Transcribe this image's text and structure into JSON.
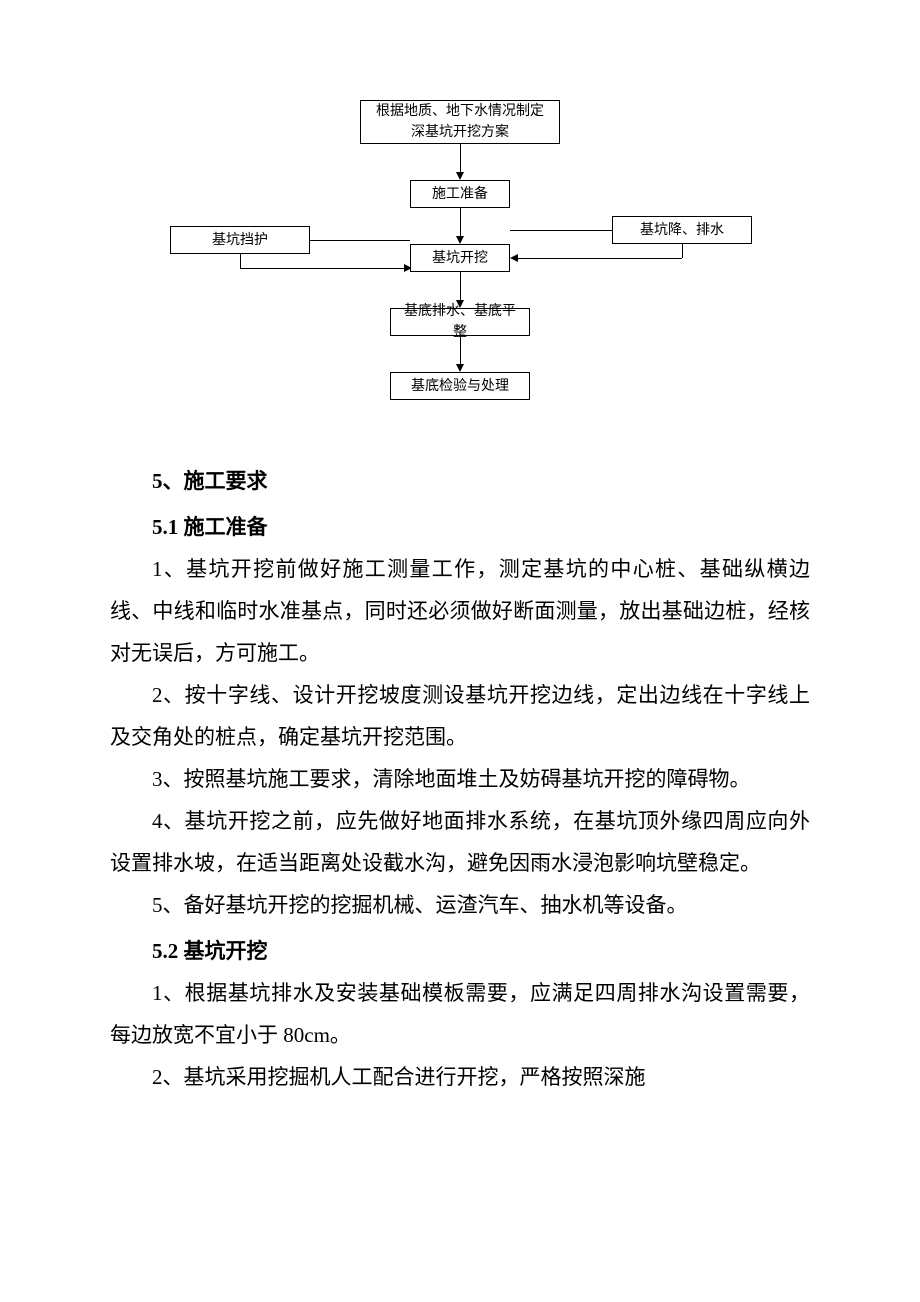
{
  "flowchart": {
    "nodes": {
      "top": "根据地质、地下水情况制定\n深基坑开挖方案",
      "prep": "施工准备",
      "left": "基坑挡护",
      "right": "基坑降、排水",
      "dig": "基坑开挖",
      "drain": "基底排水、基底平整",
      "inspect": "基底检验与处理"
    },
    "styling": {
      "box_border": "#000000",
      "box_bg": "#ffffff",
      "font_size": 14,
      "arrow_color": "#000000"
    }
  },
  "sections": {
    "s5": "5、施工要求",
    "s5_1": "5.1 施工准备",
    "p5_1_1": "1、基坑开挖前做好施工测量工作，测定基坑的中心桩、基础纵横边线、中线和临时水准基点，同时还必须做好断面测量，放出基础边桩，经核对无误后，方可施工。",
    "p5_1_2": "2、按十字线、设计开挖坡度测设基坑开挖边线，定出边线在十字线上及交角处的桩点，确定基坑开挖范围。",
    "p5_1_3": "3、按照基坑施工要求，清除地面堆土及妨碍基坑开挖的障碍物。",
    "p5_1_4": "4、基坑开挖之前，应先做好地面排水系统，在基坑顶外缘四周应向外设置排水坡，在适当距离处设截水沟，避免因雨水浸泡影响坑壁稳定。",
    "p5_1_5": "5、备好基坑开挖的挖掘机械、运渣汽车、抽水机等设备。",
    "s5_2": "5.2 基坑开挖",
    "p5_2_1": "1、根据基坑排水及安装基础模板需要，应满足四周排水沟设置需要，每边放宽不宜小于 80cm。",
    "p5_2_2": "2、基坑采用挖掘机人工配合进行开挖，严格按照深施"
  },
  "styling": {
    "page_bg": "#ffffff",
    "text_color": "#000000",
    "body_font_size": 21,
    "line_height": 2.0,
    "font_family": "SimSun"
  }
}
